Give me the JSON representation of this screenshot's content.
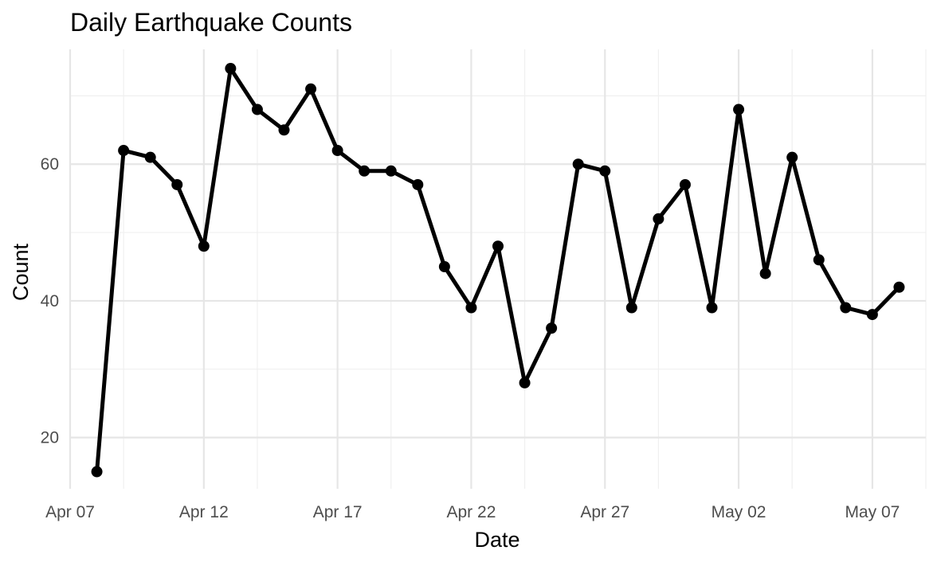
{
  "chart_data": {
    "type": "line",
    "title": "Daily Earthquake Counts",
    "xlabel": "Date",
    "ylabel": "Count",
    "x_range": [
      "2023-04-07",
      "2023-05-09"
    ],
    "ylim": [
      12.5,
      76.8
    ],
    "x_ticks": [
      {
        "date": "2023-04-07",
        "label": "Apr 07"
      },
      {
        "date": "2023-04-12",
        "label": "Apr 12"
      },
      {
        "date": "2023-04-17",
        "label": "Apr 17"
      },
      {
        "date": "2023-04-22",
        "label": "Apr 22"
      },
      {
        "date": "2023-04-27",
        "label": "Apr 27"
      },
      {
        "date": "2023-05-02",
        "label": "May 02"
      },
      {
        "date": "2023-05-07",
        "label": "May 07"
      }
    ],
    "x_minor_ticks": [
      "2023-04-09",
      "2023-04-14",
      "2023-04-19",
      "2023-04-24",
      "2023-04-29",
      "2023-05-04",
      "2023-05-09"
    ],
    "y_ticks": [
      20,
      40,
      60
    ],
    "y_minor_ticks": [
      30,
      50,
      70
    ],
    "grid": true,
    "line_color": "#000000",
    "series": [
      {
        "x": [
          "2023-04-08",
          "2023-04-09",
          "2023-04-10",
          "2023-04-11",
          "2023-04-12",
          "2023-04-13",
          "2023-04-14",
          "2023-04-15",
          "2023-04-16",
          "2023-04-17",
          "2023-04-18",
          "2023-04-19",
          "2023-04-20",
          "2023-04-21",
          "2023-04-22",
          "2023-04-23",
          "2023-04-24",
          "2023-04-25",
          "2023-04-26",
          "2023-04-27",
          "2023-04-28",
          "2023-04-29",
          "2023-04-30",
          "2023-05-01",
          "2023-05-02",
          "2023-05-03",
          "2023-05-04",
          "2023-05-05",
          "2023-05-06",
          "2023-05-07",
          "2023-05-08"
        ],
        "y": [
          15,
          62,
          61,
          57,
          48,
          74,
          68,
          65,
          71,
          62,
          59,
          59,
          57,
          45,
          39,
          48,
          28,
          36,
          60,
          59,
          39,
          52,
          57,
          39,
          68,
          44,
          61,
          46,
          39,
          38,
          42
        ]
      }
    ]
  }
}
